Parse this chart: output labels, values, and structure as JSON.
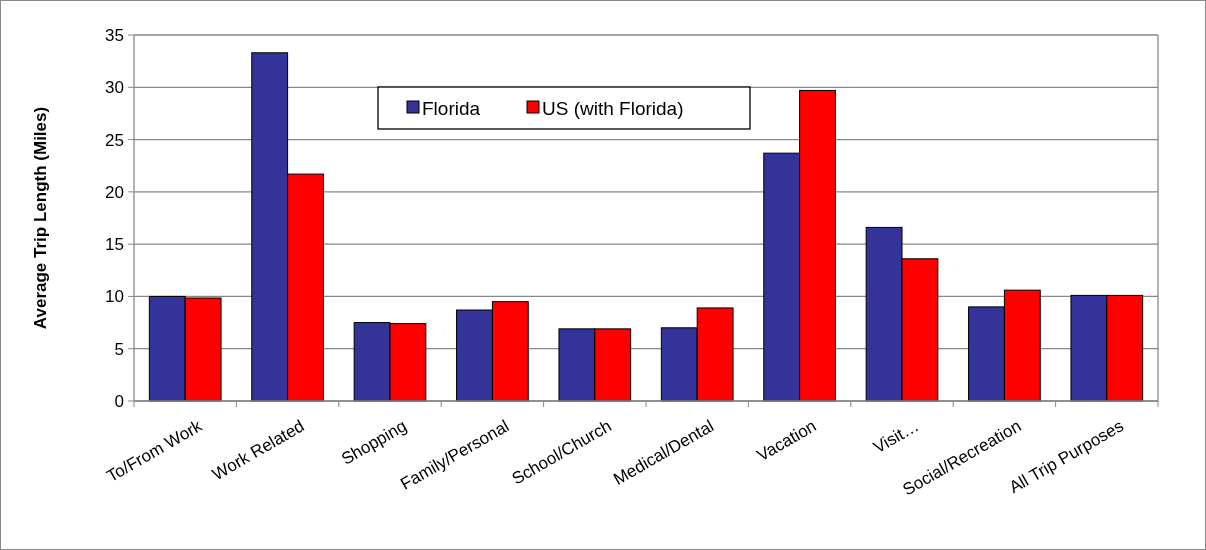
{
  "chart_data": {
    "type": "bar",
    "ylabel": "Average Trip Length (Miles)",
    "categories": [
      "To/From Work",
      "Work Related",
      "Shopping",
      "Family/Personal",
      "School/Church",
      "Medical/Dental",
      "Vacation",
      "Visit…",
      "Social/Recreation",
      "All Trip Purposes"
    ],
    "series": [
      {
        "name": "Florida",
        "color": "#333399",
        "values": [
          10.0,
          33.3,
          7.5,
          8.7,
          6.9,
          7.0,
          23.7,
          16.6,
          9.0,
          10.1
        ]
      },
      {
        "name": "US (with Florida)",
        "color": "#ff0000",
        "values": [
          9.85,
          21.7,
          7.4,
          9.5,
          6.9,
          8.9,
          29.7,
          13.6,
          10.6,
          10.1
        ]
      }
    ],
    "ylim": [
      0,
      35
    ],
    "yticks": [
      0,
      5,
      10,
      15,
      20,
      25,
      30,
      35
    ],
    "grid": "y",
    "legend": "top"
  }
}
